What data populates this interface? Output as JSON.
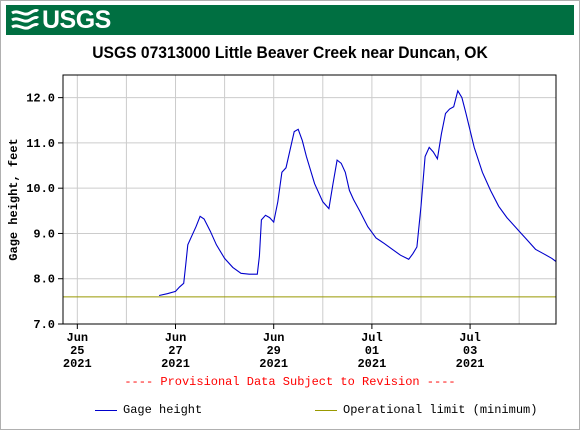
{
  "header": {
    "logo_text": "USGS",
    "brand_color": "#006f41",
    "logo_icon": "usgs-wave-icon"
  },
  "chart_data": {
    "type": "line",
    "title": "USGS 07313000 Little Beaver Creek near Duncan, OK",
    "xlabel": "",
    "ylabel": "Gage height, feet",
    "ylim": [
      7.0,
      12.5
    ],
    "y_ticks": [
      "7.0",
      "8.0",
      "9.0",
      "10.0",
      "11.0",
      "12.0"
    ],
    "xlim": [
      "2021-06-24T17:00",
      "2021-07-04T18:00"
    ],
    "x_ticks": [
      {
        "date": "2021-06-25",
        "lines": [
          "Jun",
          "25",
          "2021"
        ]
      },
      {
        "date": "2021-06-27",
        "lines": [
          "Jun",
          "27",
          "2021"
        ]
      },
      {
        "date": "2021-06-29",
        "lines": [
          "Jun",
          "29",
          "2021"
        ]
      },
      {
        "date": "2021-07-01",
        "lines": [
          "Jul",
          "01",
          "2021"
        ]
      },
      {
        "date": "2021-07-03",
        "lines": [
          "Jul",
          "03",
          "2021"
        ]
      }
    ],
    "grid": true,
    "series": [
      {
        "name": "Gage height",
        "color": "#0000cc",
        "points": [
          [
            "2021-06-26T16:00",
            7.63
          ],
          [
            "2021-06-26T20:00",
            7.67
          ],
          [
            "2021-06-27T00:00",
            7.72
          ],
          [
            "2021-06-27T02:00",
            7.82
          ],
          [
            "2021-06-27T04:00",
            7.9
          ],
          [
            "2021-06-27T05:00",
            8.3
          ],
          [
            "2021-06-27T06:00",
            8.75
          ],
          [
            "2021-06-27T08:00",
            8.95
          ],
          [
            "2021-06-27T10:00",
            9.15
          ],
          [
            "2021-06-27T12:00",
            9.38
          ],
          [
            "2021-06-27T14:00",
            9.32
          ],
          [
            "2021-06-27T17:00",
            9.05
          ],
          [
            "2021-06-27T20:00",
            8.75
          ],
          [
            "2021-06-28T00:00",
            8.45
          ],
          [
            "2021-06-28T04:00",
            8.25
          ],
          [
            "2021-06-28T08:00",
            8.12
          ],
          [
            "2021-06-28T12:00",
            8.1
          ],
          [
            "2021-06-28T16:00",
            8.1
          ],
          [
            "2021-06-28T17:00",
            8.5
          ],
          [
            "2021-06-28T18:00",
            9.3
          ],
          [
            "2021-06-28T20:00",
            9.4
          ],
          [
            "2021-06-28T22:00",
            9.35
          ],
          [
            "2021-06-29T00:00",
            9.25
          ],
          [
            "2021-06-29T02:00",
            9.7
          ],
          [
            "2021-06-29T04:00",
            10.35
          ],
          [
            "2021-06-29T06:00",
            10.45
          ],
          [
            "2021-06-29T08:00",
            10.85
          ],
          [
            "2021-06-29T10:00",
            11.25
          ],
          [
            "2021-06-29T12:00",
            11.3
          ],
          [
            "2021-06-29T14:00",
            11.05
          ],
          [
            "2021-06-29T16:00",
            10.7
          ],
          [
            "2021-06-29T20:00",
            10.1
          ],
          [
            "2021-06-30T00:00",
            9.7
          ],
          [
            "2021-06-30T03:00",
            9.55
          ],
          [
            "2021-06-30T05:00",
            10.1
          ],
          [
            "2021-06-30T07:00",
            10.62
          ],
          [
            "2021-06-30T09:00",
            10.55
          ],
          [
            "2021-06-30T11:00",
            10.35
          ],
          [
            "2021-06-30T13:00",
            9.95
          ],
          [
            "2021-06-30T15:00",
            9.75
          ],
          [
            "2021-06-30T18:00",
            9.5
          ],
          [
            "2021-06-30T22:00",
            9.15
          ],
          [
            "2021-07-01T02:00",
            8.9
          ],
          [
            "2021-07-01T06:00",
            8.78
          ],
          [
            "2021-07-01T10:00",
            8.65
          ],
          [
            "2021-07-01T14:00",
            8.52
          ],
          [
            "2021-07-01T18:00",
            8.43
          ],
          [
            "2021-07-01T20:00",
            8.55
          ],
          [
            "2021-07-01T22:00",
            8.7
          ],
          [
            "2021-07-02T00:00",
            9.6
          ],
          [
            "2021-07-02T02:00",
            10.7
          ],
          [
            "2021-07-02T04:00",
            10.9
          ],
          [
            "2021-07-02T06:00",
            10.8
          ],
          [
            "2021-07-02T08:00",
            10.65
          ],
          [
            "2021-07-02T10:00",
            11.2
          ],
          [
            "2021-07-02T12:00",
            11.65
          ],
          [
            "2021-07-02T14:00",
            11.75
          ],
          [
            "2021-07-02T16:00",
            11.8
          ],
          [
            "2021-07-02T18:00",
            12.15
          ],
          [
            "2021-07-02T20:00",
            12.0
          ],
          [
            "2021-07-02T22:00",
            11.65
          ],
          [
            "2021-07-03T02:00",
            10.9
          ],
          [
            "2021-07-03T06:00",
            10.35
          ],
          [
            "2021-07-03T10:00",
            9.95
          ],
          [
            "2021-07-03T14:00",
            9.6
          ],
          [
            "2021-07-03T18:00",
            9.35
          ],
          [
            "2021-07-04T00:00",
            9.05
          ],
          [
            "2021-07-04T04:00",
            8.85
          ],
          [
            "2021-07-04T08:00",
            8.65
          ],
          [
            "2021-07-04T12:00",
            8.55
          ],
          [
            "2021-07-04T16:00",
            8.45
          ],
          [
            "2021-07-04T18:00",
            8.38
          ]
        ]
      },
      {
        "name": "Operational limit (minimum)",
        "color": "#999900",
        "constant": 7.6
      }
    ]
  },
  "provisional_note": "---- Provisional Data Subject to Revision ----",
  "legend": {
    "gage_label": "Gage height",
    "limit_label": "Operational limit (minimum)"
  }
}
